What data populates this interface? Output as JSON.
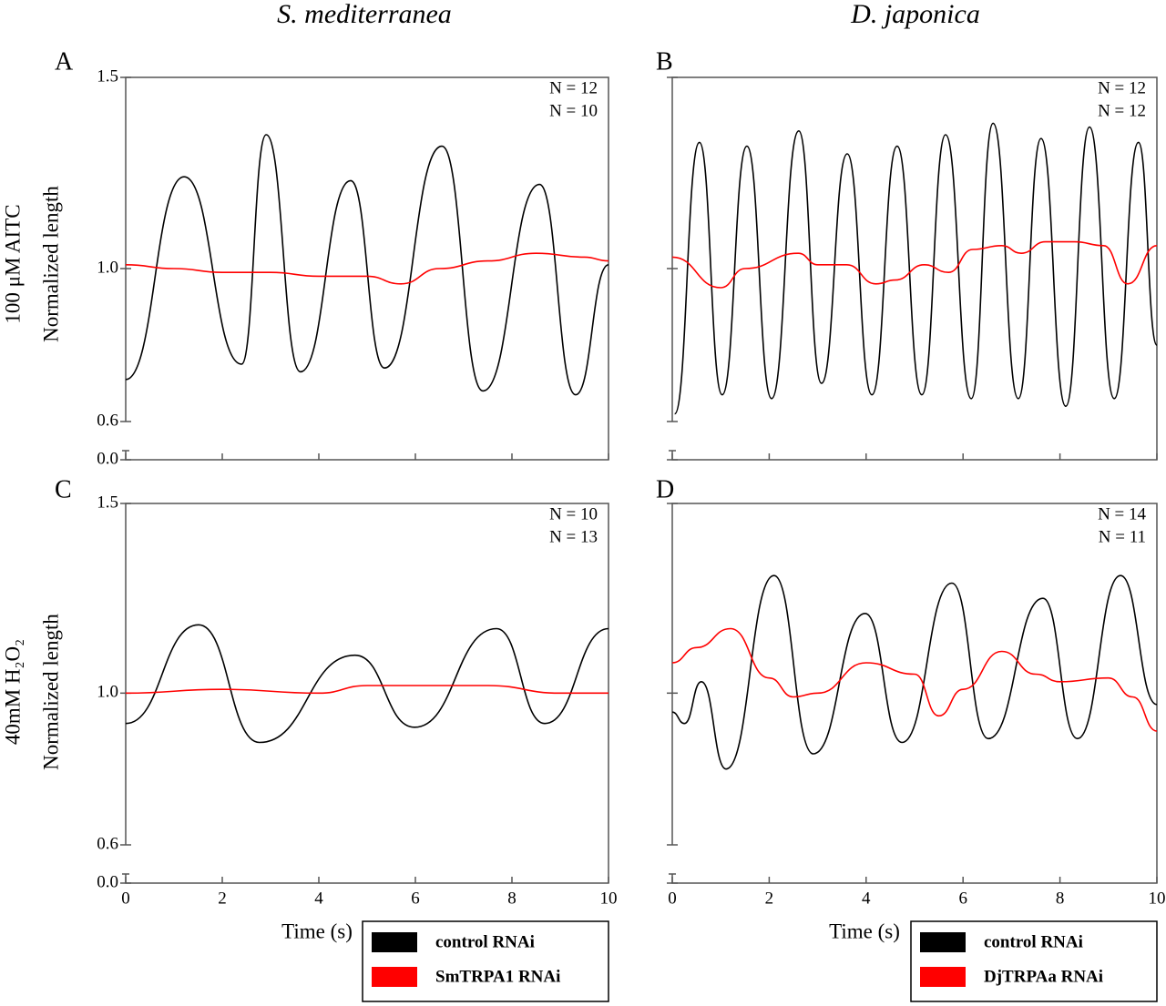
{
  "column_titles": [
    "S. mediterranea",
    "D. japonica"
  ],
  "row_labels": [
    [
      "100 μM AITC",
      "Normalized length"
    ],
    [
      "40mM H₂O₂",
      "Normalized length"
    ]
  ],
  "chart_data": [
    {
      "type": "line",
      "panel": "A",
      "xlim": [
        0,
        10
      ],
      "xticks": [
        0,
        2,
        4,
        6,
        8,
        10
      ],
      "xtick_labels": false,
      "ylim": [
        0,
        1.5
      ],
      "y_break": [
        0,
        0.6
      ],
      "yticks": [
        {
          "value": 0,
          "label": "0.0"
        },
        0.6,
        {
          "value": 1,
          "label": "1.0"
        },
        1.5
      ],
      "series": [
        {
          "color": "#000000",
          "n_label": "N = 12",
          "x": [
            0,
            1.21,
            2.4,
            2.91,
            3.62,
            4.66,
            5.36,
            6.55,
            7.4,
            8.57,
            9.32,
            10
          ],
          "values": [
            0.71,
            1.24,
            0.75,
            1.35,
            0.73,
            1.23,
            0.74,
            1.32,
            0.68,
            1.22,
            0.67,
            1.01
          ]
        },
        {
          "color": "#ff0000",
          "n_label": "N = 10",
          "x": [
            0,
            1,
            2,
            3,
            4,
            5,
            5.7,
            6.5,
            7.5,
            8.5,
            9.5,
            10
          ],
          "values": [
            1.01,
            1.0,
            0.99,
            0.99,
            0.98,
            0.98,
            0.96,
            1.0,
            1.02,
            1.04,
            1.03,
            1.02
          ]
        }
      ]
    },
    {
      "type": "line",
      "panel": "B",
      "xlim": [
        0,
        10
      ],
      "xticks": [
        0,
        2,
        4,
        6,
        8,
        10
      ],
      "xtick_labels": false,
      "ylim": [
        0,
        1.5
      ],
      "y_break": [
        0,
        0.6
      ],
      "yticks": [
        {
          "value": 0,
          "label": ""
        },
        {
          "value": 0.6,
          "label": ""
        },
        {
          "value": 1,
          "label": ""
        },
        {
          "value": 1.5,
          "label": ""
        }
      ],
      "series": [
        {
          "color": "#000000",
          "n_label": "N = 12",
          "x": [
            0.05,
            0.56,
            1.03,
            1.54,
            2.05,
            2.61,
            3.08,
            3.61,
            4.12,
            4.64,
            5.15,
            5.64,
            6.17,
            6.62,
            7.14,
            7.61,
            8.12,
            8.61,
            9.12,
            9.62,
            10
          ],
          "values": [
            0.62,
            1.33,
            0.67,
            1.32,
            0.66,
            1.36,
            0.7,
            1.3,
            0.67,
            1.32,
            0.67,
            1.35,
            0.66,
            1.38,
            0.66,
            1.34,
            0.64,
            1.37,
            0.66,
            1.33,
            0.8
          ]
        },
        {
          "color": "#ff0000",
          "n_label": "N = 12",
          "x": [
            0,
            1,
            1.5,
            2.6,
            3,
            3.6,
            4.2,
            4.6,
            5.2,
            5.7,
            6.2,
            6.8,
            7.2,
            7.7,
            8.3,
            8.9,
            9.4,
            10
          ],
          "values": [
            1.03,
            0.95,
            1.0,
            1.04,
            1.01,
            1.01,
            0.96,
            0.97,
            1.01,
            0.99,
            1.05,
            1.06,
            1.04,
            1.07,
            1.07,
            1.06,
            0.96,
            1.06
          ]
        }
      ]
    },
    {
      "type": "line",
      "panel": "C",
      "xlabel": "Time (s)",
      "xlim": [
        0,
        10
      ],
      "xticks": [
        0,
        2,
        4,
        6,
        8,
        10
      ],
      "xtick_labels": true,
      "ylim": [
        0,
        1.5
      ],
      "y_break": [
        0,
        0.6
      ],
      "yticks": [
        {
          "value": 0,
          "label": "0.0"
        },
        0.6,
        {
          "value": 1,
          "label": "1.0"
        },
        1.5
      ],
      "legend": "below",
      "series": [
        {
          "name": "control RNAi",
          "color": "#000000",
          "n_label": "N = 10",
          "x": [
            0,
            1.51,
            2.77,
            4.75,
            5.98,
            7.68,
            8.68,
            10
          ],
          "values": [
            0.92,
            1.18,
            0.87,
            1.1,
            0.91,
            1.17,
            0.92,
            1.17
          ]
        },
        {
          "name": "SmTRPA1 RNAi",
          "color": "#ff0000",
          "n_label": "N = 13",
          "x": [
            0,
            2,
            4,
            5,
            7.5,
            9,
            10
          ],
          "values": [
            1.0,
            1.01,
            1.0,
            1.02,
            1.02,
            1.0,
            1.0
          ]
        }
      ]
    },
    {
      "type": "line",
      "panel": "D",
      "xlabel": "Time (s)",
      "xlim": [
        0,
        10
      ],
      "xticks": [
        0,
        2,
        4,
        6,
        8,
        10
      ],
      "xtick_labels": true,
      "ylim": [
        0,
        1.5
      ],
      "y_break": [
        0,
        0.6
      ],
      "yticks": [
        {
          "value": 0,
          "label": ""
        },
        {
          "value": 0.6,
          "label": ""
        },
        {
          "value": 1,
          "label": ""
        },
        {
          "value": 1.5,
          "label": ""
        }
      ],
      "legend": "below",
      "series": [
        {
          "name": "control RNAi",
          "color": "#000000",
          "n_label": "N = 14",
          "x": [
            0,
            0.25,
            0.6,
            1.11,
            2.1,
            2.91,
            3.98,
            4.74,
            5.77,
            6.52,
            7.65,
            8.36,
            9.25,
            10
          ],
          "values": [
            0.95,
            0.92,
            1.03,
            0.8,
            1.31,
            0.84,
            1.21,
            0.87,
            1.29,
            0.88,
            1.25,
            0.88,
            1.31,
            0.97
          ]
        },
        {
          "name": "DjTRPAa RNAi",
          "color": "#ff0000",
          "n_label": "N = 11",
          "x": [
            0,
            0.5,
            1.2,
            2,
            2.5,
            3,
            4,
            5,
            5.5,
            6,
            6.8,
            7.5,
            8,
            9,
            9.5,
            10
          ],
          "values": [
            1.08,
            1.12,
            1.17,
            1.04,
            0.99,
            1.0,
            1.08,
            1.05,
            0.94,
            1.01,
            1.11,
            1.05,
            1.03,
            1.04,
            0.99,
            0.9
          ]
        }
      ]
    }
  ]
}
